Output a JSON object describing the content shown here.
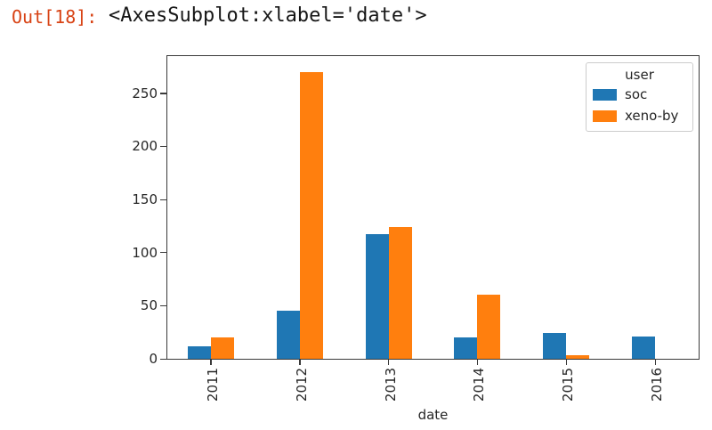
{
  "header": {
    "prompt": "Out[18]:",
    "repr": "<AxesSubplot:xlabel='date'>"
  },
  "colors": {
    "out_prompt": "#d84315",
    "axis": "#3a3a3a",
    "soc_blue": "#1f77b4",
    "xeno_orange": "#ff7f0e"
  },
  "chart_data": {
    "type": "bar",
    "title": "",
    "xlabel": "date",
    "ylabel": "",
    "categories": [
      "2011",
      "2012",
      "2013",
      "2014",
      "2015",
      "2016"
    ],
    "series": [
      {
        "name": "soc",
        "color": "#1f77b4",
        "values": [
          12,
          45,
          117,
          20,
          24,
          21
        ]
      },
      {
        "name": "xeno-by",
        "color": "#ff7f0e",
        "values": [
          20,
          270,
          124,
          60,
          3,
          0
        ]
      }
    ],
    "ylim": [
      0,
      285
    ],
    "yticks": [
      0,
      50,
      100,
      150,
      200,
      250
    ],
    "grid": false,
    "legend": {
      "title": "user",
      "position": "upper right"
    }
  }
}
